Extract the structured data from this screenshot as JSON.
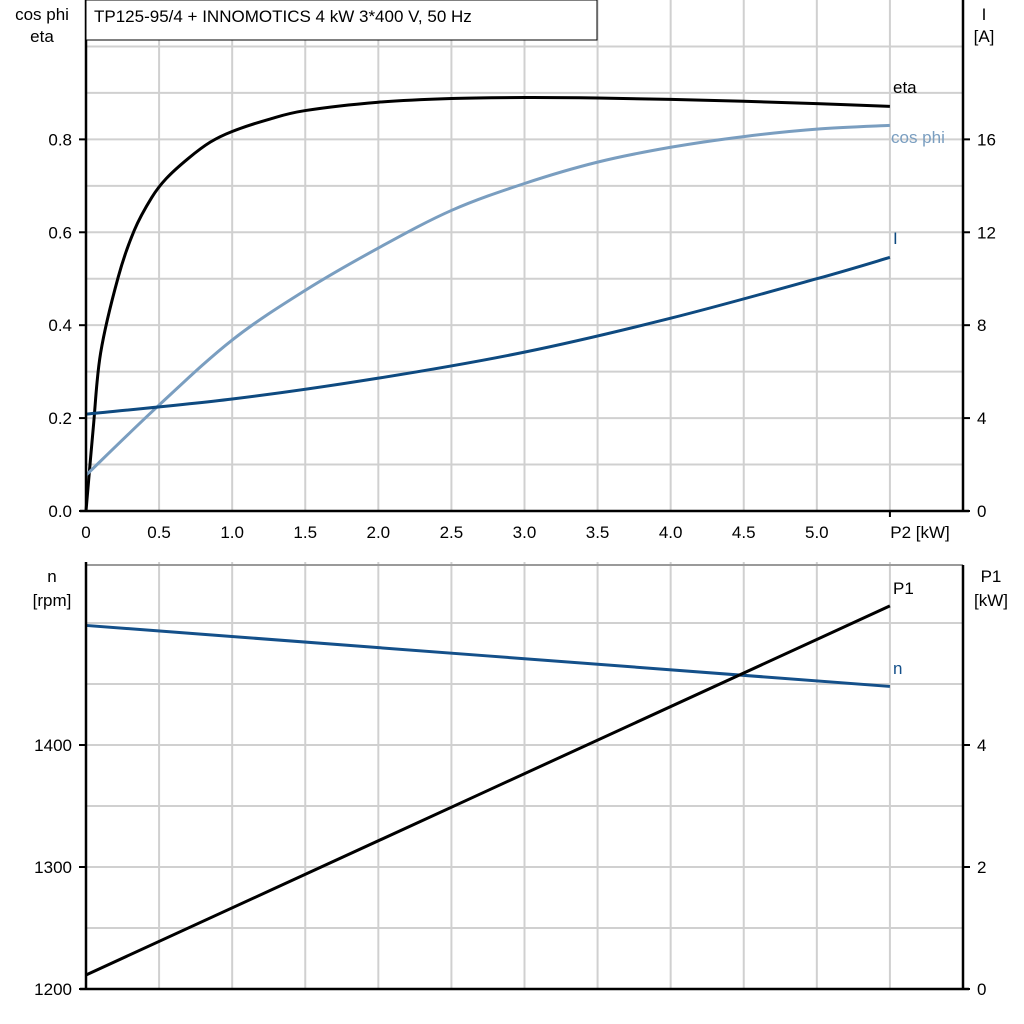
{
  "chart_data": [
    {
      "type": "line",
      "title": "TP125-95/4 + INNOMOTICS   4 kW   3*400 V, 50 Hz",
      "xlabel": "P2 [kW]",
      "xlim": [
        0,
        6
      ],
      "xticks": [
        "0",
        "0.5",
        "1.0",
        "1.5",
        "2.0",
        "2.5",
        "3.0",
        "3.5",
        "4.0",
        "4.5",
        "5.0"
      ],
      "ylabel_left": [
        "cos phi",
        "eta"
      ],
      "ylim_left": [
        0,
        1.1
      ],
      "yticks_left": [
        "0.0",
        "0.2",
        "0.4",
        "0.6",
        "0.8"
      ],
      "ylabel_right": [
        "I",
        "[A]"
      ],
      "ylim_right": [
        0,
        22
      ],
      "yticks_right": [
        "0",
        "4",
        "8",
        "12",
        "16"
      ],
      "grid": true,
      "series": [
        {
          "name": "eta",
          "axis": "left",
          "color": "#000000",
          "x": [
            0,
            0.05,
            0.1,
            0.22,
            0.33,
            0.45,
            0.55,
            0.7,
            0.85,
            1.0,
            1.25,
            1.5,
            2.0,
            2.5,
            3.0,
            3.5,
            4.0,
            4.5,
            5.0,
            5.5
          ],
          "y": [
            0,
            0.18,
            0.34,
            0.503,
            0.604,
            0.675,
            0.716,
            0.759,
            0.794,
            0.817,
            0.843,
            0.862,
            0.88,
            0.888,
            0.89,
            0.889,
            0.886,
            0.882,
            0.877,
            0.871
          ]
        },
        {
          "name": "cos phi",
          "axis": "left",
          "color": "#7a9ec0",
          "x": [
            0,
            0.5,
            1.0,
            1.5,
            2.0,
            2.5,
            3.0,
            3.5,
            4.0,
            4.5,
            5.0,
            5.5
          ],
          "y": [
            0.077,
            0.228,
            0.368,
            0.475,
            0.566,
            0.647,
            0.705,
            0.751,
            0.783,
            0.806,
            0.822,
            0.83
          ]
        },
        {
          "name": "I",
          "axis": "right",
          "color": "#0e4a80",
          "x": [
            0,
            1.0,
            2.0,
            3.0,
            4.0,
            5.0,
            5.5
          ],
          "y": [
            4.17,
            4.82,
            5.72,
            6.84,
            8.3,
            10.0,
            10.92
          ]
        }
      ]
    },
    {
      "type": "line",
      "xlim": [
        0,
        6
      ],
      "ylabel_left": [
        "n",
        "[rpm]"
      ],
      "ylim_left": [
        1200,
        1550
      ],
      "yticks_left": [
        "1200",
        "1300",
        "1400"
      ],
      "ylabel_right": [
        "P1",
        "[kW]"
      ],
      "ylim_right": [
        0,
        7
      ],
      "yticks_right": [
        "0",
        "2",
        "4"
      ],
      "grid": true,
      "series": [
        {
          "name": "n",
          "axis": "left",
          "color": "#14508a",
          "x": [
            0,
            5.5
          ],
          "y": [
            1498,
            1448
          ]
        },
        {
          "name": "P1",
          "axis": "right",
          "color": "#000000",
          "x": [
            0,
            5.5
          ],
          "y": [
            0.23,
            6.28
          ]
        }
      ]
    }
  ]
}
